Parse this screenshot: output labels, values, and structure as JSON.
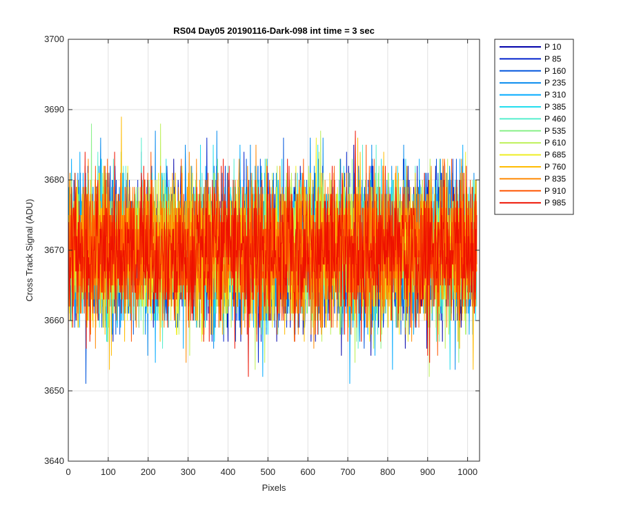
{
  "chart_data": {
    "type": "line",
    "title": "RS04 Day05 20190116-Dark-098 int time = 3 sec",
    "xlabel": "Pixels",
    "ylabel": "Cross Track Signal (ADU)",
    "xlim": [
      0,
      1030
    ],
    "ylim": [
      3640,
      3700
    ],
    "xticks": [
      "0",
      "100",
      "200",
      "300",
      "400",
      "500",
      "600",
      "700",
      "800",
      "900",
      "1000"
    ],
    "yticks": [
      "3640",
      "3650",
      "3660",
      "3670",
      "3680",
      "3690",
      "3700"
    ],
    "grid": true,
    "legend_position": "outside-right",
    "num_points": 1024,
    "series": [
      {
        "name": "P 10",
        "color": "#0000AA",
        "mean": 3670,
        "spread": 5
      },
      {
        "name": "P 85",
        "color": "#0022CC",
        "mean": 3670,
        "spread": 5
      },
      {
        "name": "P 160",
        "color": "#0055DD",
        "mean": 3670,
        "spread": 5
      },
      {
        "name": "P 235",
        "color": "#0088EE",
        "mean": 3670,
        "spread": 5
      },
      {
        "name": "P 310",
        "color": "#00AAFF",
        "mean": 3670,
        "spread": 5
      },
      {
        "name": "P 385",
        "color": "#22DDEE",
        "mean": 3670,
        "spread": 5
      },
      {
        "name": "P 460",
        "color": "#55EECC",
        "mean": 3670,
        "spread": 5
      },
      {
        "name": "P 535",
        "color": "#88F088",
        "mean": 3670,
        "spread": 5
      },
      {
        "name": "P 610",
        "color": "#BBF055",
        "mean": 3670,
        "spread": 5
      },
      {
        "name": "P 685",
        "color": "#EEEE22",
        "mean": 3670,
        "spread": 5
      },
      {
        "name": "P 760",
        "color": "#FFBB00",
        "mean": 3670,
        "spread": 5
      },
      {
        "name": "P 835",
        "color": "#FF8800",
        "mean": 3670,
        "spread": 5
      },
      {
        "name": "P 910",
        "color": "#FF5500",
        "mean": 3670,
        "spread": 5
      },
      {
        "name": "P 985",
        "color": "#EE1100",
        "mean": 3670,
        "spread": 5
      }
    ]
  }
}
